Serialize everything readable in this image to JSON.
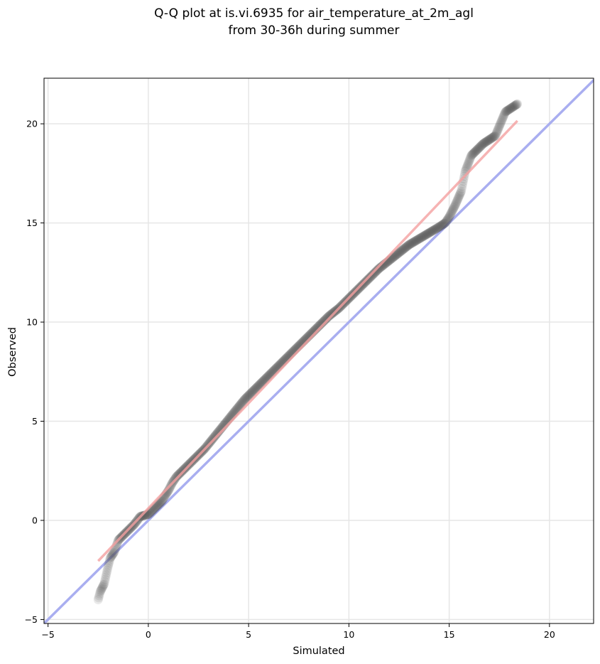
{
  "chart_data": {
    "type": "scatter",
    "title_lines": [
      "Q-Q plot at is.vi.6935 for air_temperature_at_2m_agl",
      "from 30-36h during summer"
    ],
    "xlabel": "Simulated",
    "ylabel": "Observed",
    "xlim": [
      -5.2,
      22.2
    ],
    "ylim": [
      -5.2,
      22.3
    ],
    "xticks": [
      -5,
      0,
      5,
      10,
      15,
      20
    ],
    "yticks": [
      -5,
      0,
      5,
      10,
      15,
      20
    ],
    "xtick_labels": [
      "−5",
      "0",
      "5",
      "10",
      "15",
      "20"
    ],
    "ytick_labels": [
      "−5",
      "0",
      "5",
      "10",
      "15",
      "20"
    ],
    "grid": true,
    "legend": "none",
    "quantiles": {
      "simulated": [
        -2.5,
        -2.4,
        -2.2,
        -2.0,
        -1.9,
        -1.7,
        -1.6,
        -1.5,
        -1.3,
        -1.0,
        -0.7,
        -0.4,
        0.0,
        0.3,
        0.5,
        0.6,
        0.7,
        0.8,
        1.0,
        1.2,
        1.4,
        1.6,
        1.8,
        2.0,
        2.4,
        2.8,
        3.2,
        3.6,
        4.0,
        4.4,
        4.8,
        5.2,
        5.6,
        6.0,
        6.5,
        7.0,
        7.5,
        8.0,
        8.5,
        9.0,
        9.5,
        10.0,
        10.5,
        11.0,
        11.5,
        12.0,
        12.5,
        13.0,
        13.5,
        14.0,
        14.5,
        14.8,
        15.0,
        15.3,
        15.6,
        15.8,
        16.1,
        16.4,
        16.7,
        17.0,
        17.3,
        17.8,
        18.4
      ],
      "observed": [
        -4.0,
        -3.6,
        -3.2,
        -2.3,
        -1.9,
        -1.6,
        -1.3,
        -1.0,
        -0.8,
        -0.5,
        -0.2,
        0.2,
        0.3,
        0.6,
        0.8,
        0.9,
        1.0,
        1.2,
        1.5,
        1.9,
        2.2,
        2.4,
        2.6,
        2.8,
        3.2,
        3.6,
        4.1,
        4.6,
        5.1,
        5.6,
        6.1,
        6.5,
        6.9,
        7.3,
        7.8,
        8.3,
        8.8,
        9.3,
        9.8,
        10.3,
        10.7,
        11.2,
        11.7,
        12.2,
        12.7,
        13.1,
        13.5,
        13.9,
        14.2,
        14.5,
        14.8,
        15.0,
        15.3,
        15.9,
        16.6,
        17.6,
        18.4,
        18.7,
        19.0,
        19.2,
        19.4,
        20.6,
        21.0
      ]
    },
    "fit_line": {
      "x": [
        -2.5,
        18.4
      ],
      "y": [
        -2.05,
        20.15
      ],
      "color": "#f4a0a0"
    },
    "identity_line": {
      "x": [
        -5.2,
        22.3
      ],
      "y": [
        -5.2,
        22.3
      ],
      "color": "#a9aef0"
    },
    "marker_color": "#555555"
  }
}
